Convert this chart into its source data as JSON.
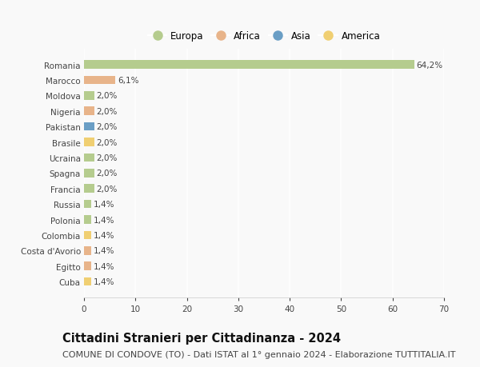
{
  "countries": [
    "Romania",
    "Marocco",
    "Moldova",
    "Nigeria",
    "Pakistan",
    "Brasile",
    "Ucraina",
    "Spagna",
    "Francia",
    "Russia",
    "Polonia",
    "Colombia",
    "Costa d'Avorio",
    "Egitto",
    "Cuba"
  ],
  "values": [
    64.2,
    6.1,
    2.0,
    2.0,
    2.0,
    2.0,
    2.0,
    2.0,
    2.0,
    1.4,
    1.4,
    1.4,
    1.4,
    1.4,
    1.4
  ],
  "labels": [
    "64,2%",
    "6,1%",
    "2,0%",
    "2,0%",
    "2,0%",
    "2,0%",
    "2,0%",
    "2,0%",
    "2,0%",
    "1,4%",
    "1,4%",
    "1,4%",
    "1,4%",
    "1,4%",
    "1,4%"
  ],
  "continents": [
    "Europa",
    "Africa",
    "Europa",
    "Africa",
    "Asia",
    "America",
    "Europa",
    "Europa",
    "Europa",
    "Europa",
    "Europa",
    "America",
    "Africa",
    "Africa",
    "America"
  ],
  "continent_colors": {
    "Europa": "#b5cc8e",
    "Africa": "#e8b48a",
    "Asia": "#6a9ec5",
    "America": "#f0cf72"
  },
  "legend_order": [
    "Europa",
    "Africa",
    "Asia",
    "America"
  ],
  "title": "Cittadini Stranieri per Cittadinanza - 2024",
  "subtitle": "COMUNE DI CONDOVE (TO) - Dati ISTAT al 1° gennaio 2024 - Elaborazione TUTTITALIA.IT",
  "xlim": [
    0,
    70
  ],
  "xticks": [
    0,
    10,
    20,
    30,
    40,
    50,
    60,
    70
  ],
  "background_color": "#f9f9f9",
  "grid_color": "#ffffff",
  "title_fontsize": 10.5,
  "subtitle_fontsize": 8,
  "label_fontsize": 7.5,
  "tick_fontsize": 7.5,
  "legend_fontsize": 8.5
}
